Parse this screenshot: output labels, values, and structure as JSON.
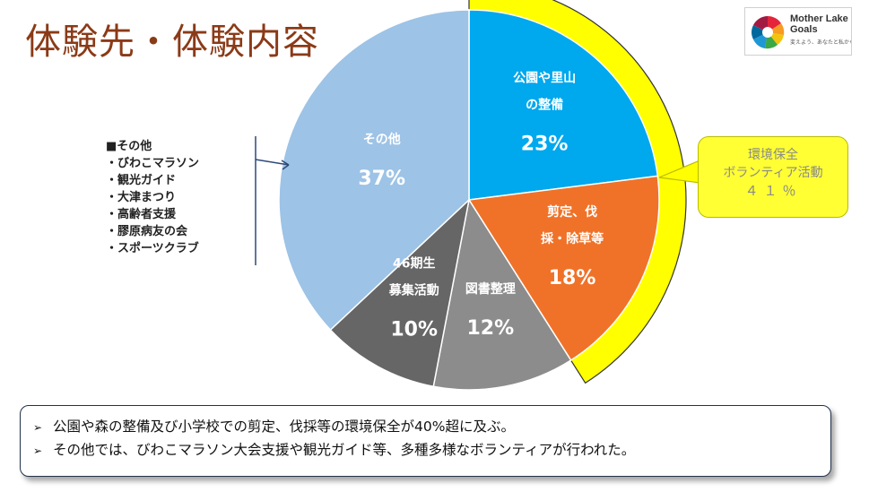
{
  "header": {
    "title": "体験先・体験内容"
  },
  "logo": {
    "name_line1": "Mother Lake",
    "name_line2": "Goals",
    "tagline": "変えよう、あなたと私から"
  },
  "chart_data": {
    "type": "pie",
    "title": "体験先・体験内容",
    "slices": [
      {
        "label_lines": [
          "公園や里山",
          "の整備"
        ],
        "value": 23,
        "value_text": "23%",
        "color": "#00a8ee"
      },
      {
        "label_lines": [
          "剪定、伐",
          "採・除草等"
        ],
        "value": 18,
        "value_text": "18%",
        "color": "#f07228"
      },
      {
        "label_lines": [
          "図書整理"
        ],
        "value": 12,
        "value_text": "12%",
        "color": "#8c8c8c"
      },
      {
        "label_lines": [
          "46期生",
          "募集活動"
        ],
        "value": 10,
        "value_text": "10%",
        "color": "#666666"
      },
      {
        "label_lines": [
          "その他"
        ],
        "value": 37,
        "value_text": "37%",
        "color": "#9dc3e6"
      }
    ],
    "highlight": {
      "label_line1": "環境保全",
      "label_line2": "ボランティア活動",
      "value_text": "４１％",
      "color": "#ffff00"
    }
  },
  "others": {
    "heading": "■その他",
    "items": [
      "・びわこマラソン",
      "・観光ガイド",
      "・大津まつり",
      "・高齢者支援",
      "・膠原病友の会",
      "・スポーツクラブ"
    ]
  },
  "summary": {
    "bullet": "➢",
    "lines": [
      "公園や森の整備及び小学校での剪定、伐採等の環境保全が40%超に及ぶ。",
      "その他では、びわこマラソン大会支援や観光ガイド等、多種多様なボランティアが行われた。"
    ]
  }
}
